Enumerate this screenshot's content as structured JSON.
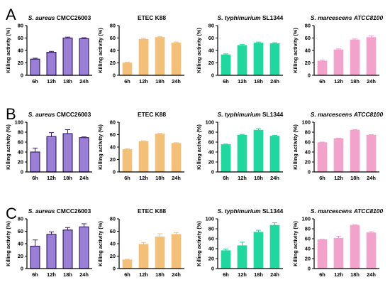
{
  "figure": {
    "row_labels": [
      "A",
      "B",
      "C"
    ],
    "colors": {
      "S. aureus": "#9b7fd4",
      "ETEC": "#f3c07a",
      "S. typhimurium": "#22d6a0",
      "S. marcescens": "#f2a3cc",
      "axis": "#000000"
    }
  },
  "chart_data": [
    {
      "type": "bar",
      "row": "A",
      "species": "S. aureus",
      "title_italic": "S. aureus",
      "title_rest": " CMCC26003",
      "title_italic_after": "",
      "color": "#9b7fd4",
      "categories": [
        "6h",
        "12h",
        "18h",
        "24h"
      ],
      "values": [
        26,
        37,
        60,
        59
      ],
      "errors": [
        1.5,
        1.5,
        1.5,
        1.5
      ],
      "ylabel": "Killing activity (%)",
      "ylim": [
        0,
        80
      ],
      "yticks": [
        0,
        20,
        40,
        60,
        80
      ]
    },
    {
      "type": "bar",
      "row": "A",
      "species": "ETEC",
      "title_italic": "",
      "title_rest": "ETEC K88",
      "title_italic_after": "",
      "color": "#f3c07a",
      "categories": [
        "6h",
        "12h",
        "18h",
        "24h"
      ],
      "values": [
        20,
        58,
        61,
        52
      ],
      "errors": [
        1,
        1.5,
        1,
        1.5
      ],
      "ylabel": "Killing activity (%)",
      "ylim": [
        0,
        80
      ],
      "yticks": [
        0,
        20,
        40,
        60,
        80
      ]
    },
    {
      "type": "bar",
      "row": "A",
      "species": "S. typhimurium",
      "title_italic": "S. typhimurium",
      "title_rest": " SL1344",
      "title_italic_after": "",
      "color": "#22d6a0",
      "categories": [
        "6h",
        "12h",
        "18h",
        "24h"
      ],
      "values": [
        33,
        48,
        52,
        51
      ],
      "errors": [
        1.5,
        1.5,
        1.5,
        1.5
      ],
      "ylabel": "Killing activity (%)",
      "ylim": [
        0,
        80
      ],
      "yticks": [
        0,
        20,
        40,
        60,
        80
      ]
    },
    {
      "type": "bar",
      "row": "A",
      "species": "S. marcescens",
      "title_italic": "S. marcescens",
      "title_rest": " ",
      "title_italic_after": "ATCC8100",
      "color": "#f2a3cc",
      "categories": [
        "6h",
        "12h",
        "18h",
        "24h"
      ],
      "values": [
        23,
        41,
        57,
        61
      ],
      "errors": [
        1.5,
        1.5,
        1.5,
        2.5
      ],
      "ylabel": "Killing activity (%)",
      "ylim": [
        0,
        80
      ],
      "yticks": [
        0,
        20,
        40,
        60,
        80
      ]
    },
    {
      "type": "bar",
      "row": "B",
      "species": "S. aureus",
      "title_italic": "S. aureus",
      "title_rest": " CMCC26003",
      "title_italic_after": "",
      "color": "#9b7fd4",
      "categories": [
        "6h",
        "12h",
        "18h",
        "24h"
      ],
      "values": [
        40,
        71,
        77,
        69
      ],
      "errors": [
        8,
        8,
        8,
        1.5
      ],
      "ylabel": "Killing activity (%)",
      "ylim": [
        0,
        100
      ],
      "yticks": [
        0,
        20,
        40,
        60,
        80,
        100
      ]
    },
    {
      "type": "bar",
      "row": "B",
      "species": "ETEC",
      "title_italic": "",
      "title_rest": "ETEC K88",
      "title_italic_after": "",
      "color": "#f3c07a",
      "categories": [
        "6h",
        "12h",
        "18h",
        "24h"
      ],
      "values": [
        36,
        49,
        61,
        46
      ],
      "errors": [
        1.5,
        1,
        1,
        1
      ],
      "ylabel": "Killing activity (%)",
      "ylim": [
        0,
        80
      ],
      "yticks": [
        0,
        20,
        40,
        60,
        80
      ]
    },
    {
      "type": "bar",
      "row": "B",
      "species": "S. typhimurium",
      "title_italic": "S. typhimurium",
      "title_rest": " SL1344",
      "title_italic_after": "",
      "color": "#22d6a0",
      "categories": [
        "6h",
        "12h",
        "18h",
        "24h"
      ],
      "values": [
        55,
        74,
        84,
        72
      ],
      "errors": [
        1,
        1.5,
        3,
        1.5
      ],
      "ylabel": "Killing activity (%)",
      "ylim": [
        0,
        100
      ],
      "yticks": [
        0,
        20,
        40,
        60,
        80,
        100
      ]
    },
    {
      "type": "bar",
      "row": "B",
      "species": "S. marcescens",
      "title_italic": "S. marcescens",
      "title_rest": " ",
      "title_italic_after": "ATCC8100",
      "color": "#f2a3cc",
      "categories": [
        "6h",
        "12h",
        "18h",
        "24h"
      ],
      "values": [
        59,
        67,
        84,
        74
      ],
      "errors": [
        1,
        1,
        1,
        1
      ],
      "ylabel": "Killing activity (%)",
      "ylim": [
        0,
        100
      ],
      "yticks": [
        0,
        20,
        40,
        60,
        80,
        100
      ]
    },
    {
      "type": "bar",
      "row": "C",
      "species": "S. aureus",
      "title_italic": "S. aureus",
      "title_rest": " CMCC26003",
      "title_italic_after": "",
      "color": "#9b7fd4",
      "categories": [
        "6h",
        "12h",
        "18h",
        "24h"
      ],
      "values": [
        36,
        55,
        62,
        67
      ],
      "errors": [
        10,
        4,
        4,
        5
      ],
      "ylabel": "Killing activity (%)",
      "ylim": [
        0,
        80
      ],
      "yticks": [
        0,
        20,
        40,
        60,
        80
      ]
    },
    {
      "type": "bar",
      "row": "C",
      "species": "ETEC",
      "title_italic": "",
      "title_rest": "ETEC K88",
      "title_italic_after": "",
      "color": "#f3c07a",
      "categories": [
        "6h",
        "12h",
        "18h",
        "24h"
      ],
      "values": [
        14,
        39,
        51,
        55
      ],
      "errors": [
        1,
        3,
        5,
        3
      ],
      "ylabel": "Killing activity (%)",
      "ylim": [
        0,
        80
      ],
      "yticks": [
        0,
        20,
        40,
        60,
        80
      ]
    },
    {
      "type": "bar",
      "row": "C",
      "species": "S. typhimurium",
      "title_italic": "S. typhimurium",
      "title_rest": " SL1344",
      "title_italic_after": "",
      "color": "#22d6a0",
      "categories": [
        "6h",
        "12h",
        "18h",
        "24h"
      ],
      "values": [
        36,
        46,
        73,
        87
      ],
      "errors": [
        3,
        7,
        4,
        5
      ],
      "ylabel": "Killing activity (%)",
      "ylim": [
        0,
        100
      ],
      "yticks": [
        0,
        20,
        40,
        60,
        80,
        100
      ]
    },
    {
      "type": "bar",
      "row": "C",
      "species": "S. marcescens",
      "title_italic": "S. marcescens",
      "title_rest": " ",
      "title_italic_after": "ATCC8100",
      "color": "#f2a3cc",
      "categories": [
        "6h",
        "12h",
        "18h",
        "24h"
      ],
      "values": [
        58,
        61,
        87,
        72
      ],
      "errors": [
        1,
        4,
        1,
        2
      ],
      "ylabel": "Killing activity (%)",
      "ylim": [
        0,
        100
      ],
      "yticks": [
        0,
        20,
        40,
        60,
        80,
        100
      ]
    }
  ]
}
